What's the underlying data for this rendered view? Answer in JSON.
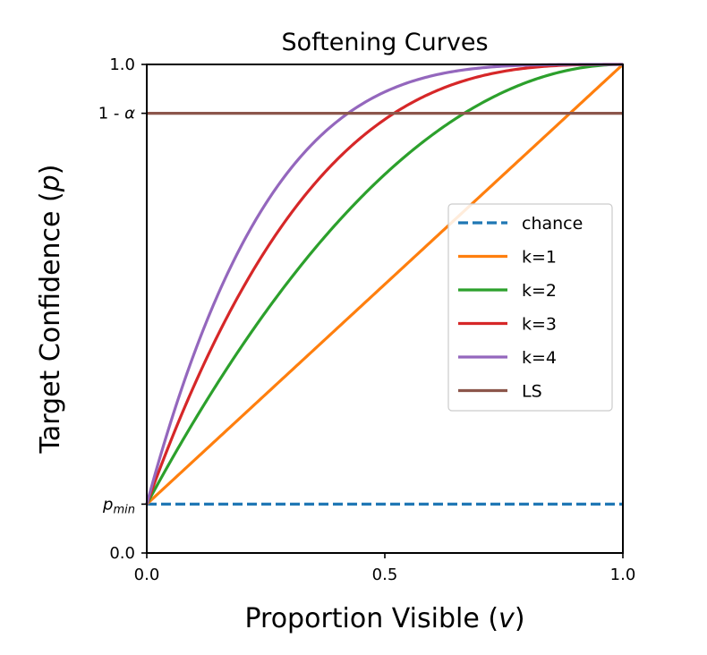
{
  "chart_data": {
    "type": "line",
    "title": "Softening Curves",
    "xlabel": {
      "main": "Proportion Visible (",
      "var": "v",
      "close": ")"
    },
    "ylabel": {
      "main": "Target Confidence (",
      "var": "p",
      "close": ")"
    },
    "xlim": [
      0.0,
      1.0
    ],
    "ylim": [
      0.0,
      1.0
    ],
    "p_min": 0.1,
    "one_minus_alpha": 0.9,
    "x_ticks": [
      {
        "value": 0.0,
        "label": "0.0"
      },
      {
        "value": 0.5,
        "label": "0.5"
      },
      {
        "value": 1.0,
        "label": "1.0"
      }
    ],
    "y_ticks": [
      {
        "value": 0.0,
        "label": "0.0"
      },
      {
        "value": 0.1,
        "label": "p",
        "sub": "min"
      },
      {
        "value": 0.9,
        "label": "1 - α"
      },
      {
        "value": 1.0,
        "label": "1.0"
      }
    ],
    "legend_position": "center-right",
    "grid": false,
    "series": [
      {
        "name": "chance",
        "kind": "constant",
        "value": 0.1,
        "color": "#1f77b4",
        "dashed": true
      },
      {
        "name": "k=1",
        "kind": "softening",
        "k": 1,
        "color": "#ff7f0e",
        "dashed": false
      },
      {
        "name": "k=2",
        "kind": "softening",
        "k": 2,
        "color": "#2ca02c",
        "dashed": false
      },
      {
        "name": "k=3",
        "kind": "softening",
        "k": 3,
        "color": "#d62728",
        "dashed": false
      },
      {
        "name": "k=4",
        "kind": "softening",
        "k": 4,
        "color": "#9467bd",
        "dashed": false
      },
      {
        "name": "LS",
        "kind": "constant",
        "value": 0.9,
        "color": "#8c564b",
        "dashed": false
      }
    ]
  }
}
